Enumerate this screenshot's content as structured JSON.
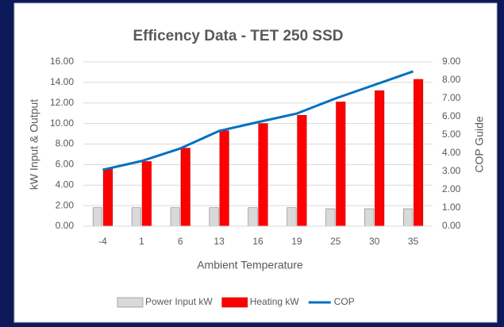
{
  "chart_data": {
    "type": "bar",
    "title": "Efficency Data - TET 250 SSD",
    "x_label": "Ambient Temperature",
    "y_label": "kW Input & Output",
    "y2_label": "COP Guide",
    "categories": [
      "-4",
      "1",
      "6",
      "13",
      "16",
      "19",
      "25",
      "30",
      "35"
    ],
    "series": [
      {
        "name": "Power Input kW",
        "color": "#d9d9d9",
        "values": [
          1.8,
          1.8,
          1.8,
          1.8,
          1.8,
          1.8,
          1.7,
          1.7,
          1.7
        ]
      },
      {
        "name": "Heating kW",
        "color": "#ff0000",
        "values": [
          5.6,
          6.3,
          7.6,
          9.3,
          10.0,
          10.8,
          12.1,
          13.2,
          14.3
        ]
      },
      {
        "name": "COP",
        "color": "#0070c0",
        "type": "line",
        "axis": "y2",
        "values": [
          3.09,
          3.57,
          4.26,
          5.22,
          5.7,
          6.17,
          7.0,
          7.74,
          8.48
        ]
      }
    ],
    "ylim": [
      0,
      16
    ],
    "yticks": [
      {
        "value": 0,
        "label": "0.00"
      },
      {
        "value": 2,
        "label": "2.00"
      },
      {
        "value": 4,
        "label": "4.00"
      },
      {
        "value": 6,
        "label": "6.00"
      },
      {
        "value": 8,
        "label": "8.00"
      },
      {
        "value": 10,
        "label": "10.00"
      },
      {
        "value": 12,
        "label": "12.00"
      },
      {
        "value": 14,
        "label": "14.00"
      },
      {
        "value": 16,
        "label": "16.00"
      }
    ],
    "y2lim": [
      0,
      9
    ],
    "y2ticks": [
      {
        "value": 0,
        "label": "0.00"
      },
      {
        "value": 1,
        "label": "1.00"
      },
      {
        "value": 2,
        "label": "2.00"
      },
      {
        "value": 3,
        "label": "3.00"
      },
      {
        "value": 4,
        "label": "4.00"
      },
      {
        "value": 5,
        "label": "5.00"
      },
      {
        "value": 6,
        "label": "6.00"
      },
      {
        "value": 7,
        "label": "7.00"
      },
      {
        "value": 8,
        "label": "8.00"
      },
      {
        "value": 9,
        "label": "9.00"
      }
    ],
    "grid": true,
    "legend": "bottom"
  }
}
